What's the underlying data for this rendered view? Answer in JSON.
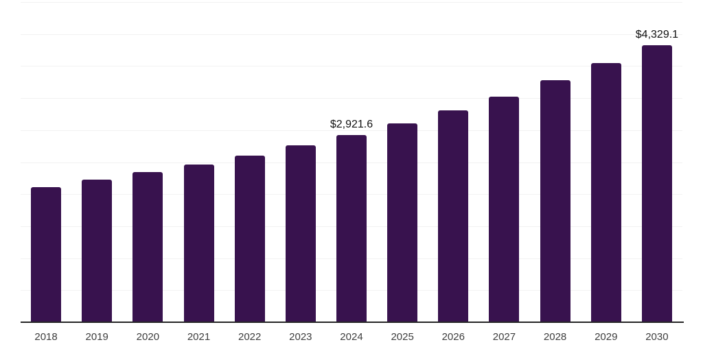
{
  "chart_data": {
    "type": "bar",
    "title": "",
    "xlabel": "",
    "ylabel": "",
    "categories": [
      "2018",
      "2019",
      "2020",
      "2021",
      "2022",
      "2023",
      "2024",
      "2025",
      "2026",
      "2027",
      "2028",
      "2029",
      "2030"
    ],
    "values": [
      2110,
      2225,
      2340,
      2460,
      2600,
      2760,
      2921.6,
      3100,
      3305,
      3520,
      3775,
      4045,
      4329.1
    ],
    "data_labels": {
      "2024": "$2,921.6",
      "2030": "$4,329.1"
    },
    "ylim": [
      0,
      5000
    ],
    "gridline_step": 500,
    "grid": "horizontal-only",
    "legend": "none",
    "y_axis_labels_visible": false,
    "bar_color": "#38124E",
    "gridline_color": "#F2F2F2",
    "axis_color": "#262626",
    "tick_label_color": "#3D3D3D",
    "data_label_color": "#111111",
    "background_color": "#FFFFFF"
  }
}
